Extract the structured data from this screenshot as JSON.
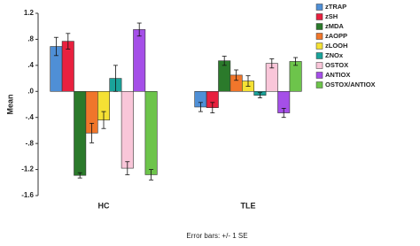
{
  "chart_data": {
    "type": "bar",
    "y_label": "Mean",
    "footer": "Error bars: +/- 1 SE",
    "categories": [
      "HC",
      "TLE"
    ],
    "ylim": [
      -1.6,
      1.2
    ],
    "yticks": [
      {
        "value": 1.2,
        "label": "1.2"
      },
      {
        "value": 0.8,
        "label": ".8"
      },
      {
        "value": 0.4,
        "label": ".4"
      },
      {
        "value": 0,
        "label": ".0"
      },
      {
        "value": -0.4,
        "label": "-.4"
      },
      {
        "value": -0.8,
        "label": "-.8"
      },
      {
        "value": -1.2,
        "label": "-1.2"
      },
      {
        "value": -1.6,
        "label": "-1.6"
      }
    ],
    "grid": false,
    "legend": "top-right",
    "series": [
      {
        "name": "zTRAP",
        "color": "#4f8fd6",
        "values": [
          0.69,
          -0.24
        ],
        "errors": [
          0.14,
          0.07
        ]
      },
      {
        "name": "zSH",
        "color": "#e8213f",
        "values": [
          0.77,
          -0.25
        ],
        "errors": [
          0.12,
          0.08
        ]
      },
      {
        "name": "zMDA",
        "color": "#2b7a2b",
        "values": [
          -1.29,
          0.47
        ],
        "errors": [
          0.04,
          0.07
        ]
      },
      {
        "name": "zAOPP",
        "color": "#f0762b",
        "values": [
          -0.64,
          0.25
        ],
        "errors": [
          0.15,
          0.08
        ]
      },
      {
        "name": "zLOOH",
        "color": "#f5e134",
        "values": [
          -0.44,
          0.16
        ],
        "errors": [
          0.13,
          0.08
        ]
      },
      {
        "name": "ZNOx",
        "color": "#1aa39a",
        "values": [
          0.2,
          -0.06
        ],
        "errors": [
          0.2,
          0.04
        ]
      },
      {
        "name": "OSTOX",
        "color": "#f9c6d9",
        "values": [
          -1.18,
          0.43
        ],
        "errors": [
          0.1,
          0.07
        ]
      },
      {
        "name": "ANTIOX",
        "color": "#a54fe8",
        "values": [
          0.95,
          -0.33
        ],
        "errors": [
          0.1,
          0.07
        ]
      },
      {
        "name": "OSTOX/ANTIOX",
        "color": "#6dc44b",
        "values": [
          -1.28,
          0.46
        ],
        "errors": [
          0.08,
          0.06
        ]
      }
    ]
  }
}
